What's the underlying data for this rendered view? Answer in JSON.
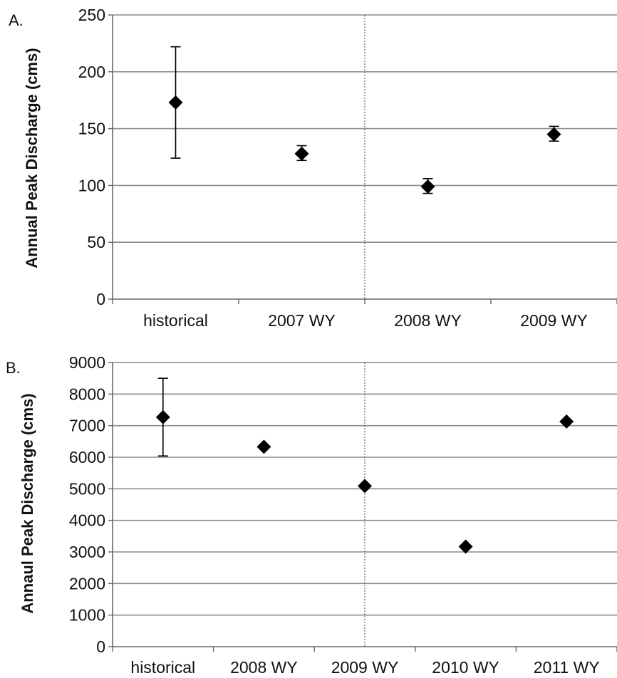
{
  "chart_data": [
    {
      "panel_label": "A.",
      "type": "scatter",
      "categories": [
        "historical",
        "2007 WY",
        "2008 WY",
        "2009 WY"
      ],
      "values": [
        173,
        128,
        99,
        145
      ],
      "error_low": [
        124,
        122,
        93,
        139
      ],
      "error_high": [
        222,
        135,
        106,
        152
      ],
      "ylabel": "Annual Peak Discharge (cms)",
      "ylim": [
        0,
        250
      ],
      "yticks": [
        0,
        50,
        100,
        150,
        200,
        250
      ],
      "divider_after_category": 2,
      "grid": true,
      "marker": "diamond",
      "color": "#000000"
    },
    {
      "panel_label": "B.",
      "type": "scatter",
      "categories": [
        "historical",
        "2008 WY",
        "2009 WY",
        "2010 WY",
        "2011 WY"
      ],
      "values": [
        7270,
        6330,
        5090,
        3170,
        7130
      ],
      "error_low": [
        6040,
        null,
        null,
        null,
        null
      ],
      "error_high": [
        8500,
        null,
        null,
        null,
        null
      ],
      "ylabel": "Annaul Peak Discharge (cms)",
      "ylim": [
        0,
        9000
      ],
      "yticks": [
        0,
        1000,
        2000,
        3000,
        4000,
        5000,
        6000,
        7000,
        8000,
        9000
      ],
      "divider_after_category": 2.5,
      "grid": true,
      "marker": "diamond",
      "color": "#000000"
    }
  ]
}
